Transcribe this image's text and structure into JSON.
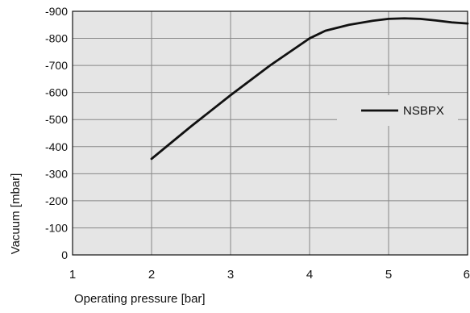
{
  "chart_data": {
    "type": "line",
    "title": "",
    "xlabel": "Operating pressure [bar]",
    "ylabel": "Vacuum [mbar]",
    "xlim": [
      1,
      6
    ],
    "ylim": [
      0,
      -900
    ],
    "x_ticks": [
      1,
      2,
      3,
      4,
      5,
      6
    ],
    "y_ticks": [
      0,
      -100,
      -200,
      -300,
      -400,
      -500,
      -600,
      -700,
      -800,
      -900
    ],
    "x_tick_labels": [
      "1",
      "2",
      "3",
      "4",
      "5",
      "6"
    ],
    "y_tick_labels": [
      "0",
      "-100",
      "-200",
      "-300",
      "-400",
      "-500",
      "-600",
      "-700",
      "-800",
      "-900"
    ],
    "grid": true,
    "legend_position": "right",
    "series": [
      {
        "name": "NSBPX",
        "x": [
          2.0,
          2.5,
          3.0,
          3.5,
          4.0,
          4.2,
          4.5,
          4.8,
          5.0,
          5.2,
          5.4,
          5.6,
          5.8,
          6.0
        ],
        "y": [
          -355,
          -475,
          -590,
          -700,
          -800,
          -828,
          -850,
          -865,
          -872,
          -874,
          -872,
          -866,
          -859,
          -855
        ]
      }
    ],
    "colors": {
      "background": "#ffffff",
      "plot_background": "#e5e5e5",
      "grid": "#888888",
      "line": "#111111"
    }
  }
}
